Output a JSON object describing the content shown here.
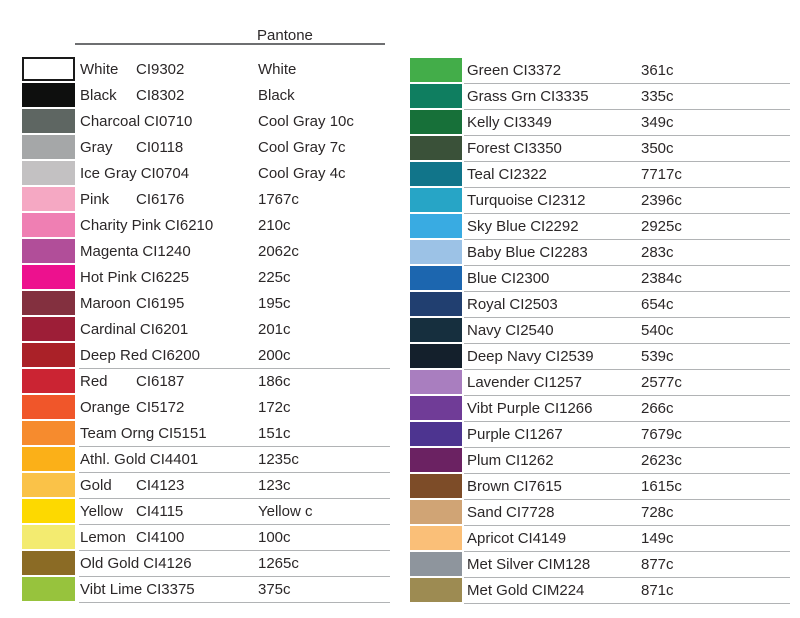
{
  "header": {
    "pantone_label": "Pantone"
  },
  "columns": [
    {
      "rows": [
        {
          "name": "White",
          "code": "CI9302",
          "pantone": "White",
          "color": "#ffffff",
          "swatch_border": true,
          "underline": false
        },
        {
          "name": "Black",
          "code": "CI8302",
          "pantone": "Black",
          "color": "#0e0f0e",
          "swatch_border": false,
          "underline": false
        },
        {
          "name": "Charcoal",
          "code": "CI0710",
          "pantone": "Cool Gray 10c",
          "color": "#5e6662",
          "swatch_border": false,
          "underline": false
        },
        {
          "name": "Gray",
          "code": "CI0118",
          "pantone": "Cool Gray 7c",
          "color": "#a5a7a8",
          "swatch_border": false,
          "underline": false
        },
        {
          "name": "Ice Gray",
          "code": "CI0704",
          "pantone": "Cool Gray 4c",
          "color": "#c3c1c2",
          "swatch_border": false,
          "underline": false
        },
        {
          "name": "Pink",
          "code": "CI6176",
          "pantone": "1767c",
          "color": "#f5a8c3",
          "swatch_border": false,
          "underline": false
        },
        {
          "name": "Charity Pink",
          "code": "CI6210",
          "pantone": "210c",
          "color": "#ef7fb3",
          "swatch_border": false,
          "underline": false
        },
        {
          "name": "Magenta",
          "code": "CI1240",
          "pantone": "2062c",
          "color": "#b14e99",
          "swatch_border": false,
          "underline": false
        },
        {
          "name": "Hot Pink",
          "code": "CI6225",
          "pantone": "225c",
          "color": "#ed118e",
          "swatch_border": false,
          "underline": false
        },
        {
          "name": "Maroon",
          "code": "CI6195",
          "pantone": "195c",
          "color": "#83303f",
          "swatch_border": false,
          "underline": false
        },
        {
          "name": "Cardinal",
          "code": "CI6201",
          "pantone": "201c",
          "color": "#9d1e37",
          "swatch_border": false,
          "underline": false
        },
        {
          "name": "Deep Red",
          "code": "CI6200",
          "pantone": "200c",
          "color": "#aa2128",
          "swatch_border": false,
          "underline": true
        },
        {
          "name": "Red",
          "code": "CI6187",
          "pantone": "186c",
          "color": "#cb2433",
          "swatch_border": false,
          "underline": false
        },
        {
          "name": "Orange",
          "code": "CI5172",
          "pantone": "172c",
          "color": "#f0562a",
          "swatch_border": false,
          "underline": false
        },
        {
          "name": "Team Orng",
          "code": "CI5151",
          "pantone": "151c",
          "color": "#f68b2e",
          "swatch_border": false,
          "underline": true
        },
        {
          "name": "Athl. Gold",
          "code": "CI4401",
          "pantone": "1235c",
          "color": "#fbb018",
          "swatch_border": false,
          "underline": true
        },
        {
          "name": "Gold",
          "code": "CI4123",
          "pantone": "123c",
          "color": "#fac248",
          "swatch_border": false,
          "underline": true
        },
        {
          "name": "Yellow",
          "code": "CI4115",
          "pantone": "Yellow c",
          "color": "#fdd900",
          "swatch_border": false,
          "underline": true
        },
        {
          "name": "Lemon",
          "code": "CI4100",
          "pantone": "100c",
          "color": "#f3eb70",
          "swatch_border": false,
          "underline": true
        },
        {
          "name": "Old Gold",
          "code": "CI4126",
          "pantone": "1265c",
          "color": "#8b6b25",
          "swatch_border": false,
          "underline": true
        },
        {
          "name": "Vibt Lime",
          "code": "CI3375",
          "pantone": "375c",
          "color": "#97c33d",
          "swatch_border": false,
          "underline": true
        }
      ]
    },
    {
      "rows": [
        {
          "name": "Green",
          "code": "CI3372",
          "pantone": "361c",
          "color": "#43ad49",
          "swatch_border": false,
          "underline": true
        },
        {
          "name": "Grass Grn",
          "code": "CI3335",
          "pantone": "335c",
          "color": "#0f7e60",
          "swatch_border": false,
          "underline": true
        },
        {
          "name": "Kelly",
          "code": "CI3349",
          "pantone": "349c",
          "color": "#177039",
          "swatch_border": false,
          "underline": true
        },
        {
          "name": "Forest",
          "code": "CI3350",
          "pantone": "350c",
          "color": "#3a5139",
          "swatch_border": false,
          "underline": true
        },
        {
          "name": "Teal",
          "code": "CI2322",
          "pantone": "7717c",
          "color": "#11758a",
          "swatch_border": false,
          "underline": true
        },
        {
          "name": "Turquoise",
          "code": "CI2312",
          "pantone": "2396c",
          "color": "#27a5c6",
          "swatch_border": false,
          "underline": true
        },
        {
          "name": "Sky Blue",
          "code": "CI2292",
          "pantone": "2925c",
          "color": "#39abe2",
          "swatch_border": false,
          "underline": true
        },
        {
          "name": "Baby Blue",
          "code": "CI2283",
          "pantone": "283c",
          "color": "#9cc2e6",
          "swatch_border": false,
          "underline": true
        },
        {
          "name": "Blue",
          "code": "CI2300",
          "pantone": "2384c",
          "color": "#1c66af",
          "swatch_border": false,
          "underline": true
        },
        {
          "name": "Royal",
          "code": "CI2503",
          "pantone": "654c",
          "color": "#213f70",
          "swatch_border": false,
          "underline": true
        },
        {
          "name": "Navy",
          "code": "CI2540",
          "pantone": "540c",
          "color": "#162f3e",
          "swatch_border": false,
          "underline": true
        },
        {
          "name": "Deep Navy",
          "code": "CI2539",
          "pantone": "539c",
          "color": "#14202c",
          "swatch_border": false,
          "underline": true
        },
        {
          "name": "Lavender",
          "code": "CI1257",
          "pantone": "2577c",
          "color": "#a97ebf",
          "swatch_border": false,
          "underline": true
        },
        {
          "name": "Vibt Purple",
          "code": "CI1266",
          "pantone": "266c",
          "color": "#703c97",
          "swatch_border": false,
          "underline": true
        },
        {
          "name": "Purple",
          "code": "CI1267",
          "pantone": "7679c",
          "color": "#4d3490",
          "swatch_border": false,
          "underline": true
        },
        {
          "name": "Plum",
          "code": "CI1262",
          "pantone": "2623c",
          "color": "#6b2262",
          "swatch_border": false,
          "underline": true
        },
        {
          "name": "Brown",
          "code": "CI7615",
          "pantone": "1615c",
          "color": "#7d4c28",
          "swatch_border": false,
          "underline": true
        },
        {
          "name": "Sand",
          "code": "CI7728",
          "pantone": "728c",
          "color": "#d0a475",
          "swatch_border": false,
          "underline": true
        },
        {
          "name": "Apricot",
          "code": "CI4149",
          "pantone": "149c",
          "color": "#fabf78",
          "swatch_border": false,
          "underline": true
        },
        {
          "name": "Met Silver",
          "code": "CIM128",
          "pantone": "877c",
          "color": "#8e959d",
          "swatch_border": false,
          "underline": true
        },
        {
          "name": "Met Gold",
          "code": "CIM224",
          "pantone": "871c",
          "color": "#9d8b52",
          "swatch_border": false,
          "underline": true
        }
      ]
    }
  ]
}
